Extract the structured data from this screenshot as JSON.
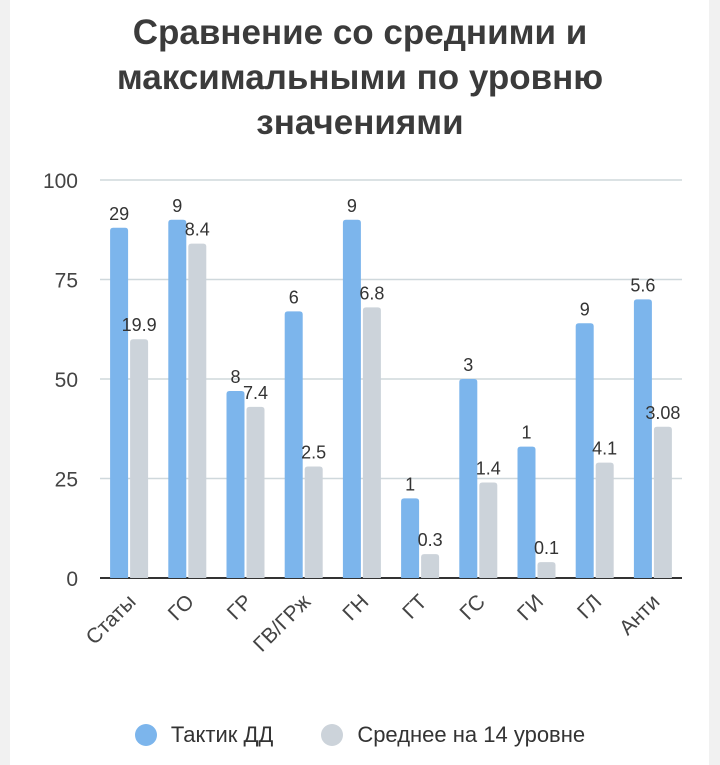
{
  "chart_data": {
    "type": "bar",
    "title": "Сравнение со средними и максимальными по уровню значениями",
    "categories": [
      "Статы",
      "ГО",
      "ГР",
      "ГВ/ГРж",
      "ГН",
      "ГТ",
      "ГС",
      "ГИ",
      "ГЛ",
      "Анти"
    ],
    "series": [
      {
        "name": "Тактик ДД",
        "color": "#7cb5ec",
        "values": [
          88,
          90,
          47,
          67,
          90,
          20,
          50,
          33,
          64,
          70
        ],
        "labels": [
          "29",
          "9",
          "8",
          "6",
          "9",
          "1",
          "3",
          "1",
          "9",
          "5.6"
        ]
      },
      {
        "name": "Среднее на 14 уровне",
        "color": "#ccd3da",
        "values": [
          60,
          84,
          43,
          28,
          68,
          6,
          24,
          4,
          29,
          38
        ],
        "labels": [
          "19.9",
          "8.4",
          "7.4",
          "2.5",
          "6.8",
          "0.3",
          "1.4",
          "0.1",
          "4.1",
          "3.08"
        ]
      }
    ],
    "ylim": [
      0,
      100
    ],
    "yticks": [
      0,
      25,
      50,
      75,
      100
    ],
    "grid": true,
    "legend_position": "bottom"
  }
}
